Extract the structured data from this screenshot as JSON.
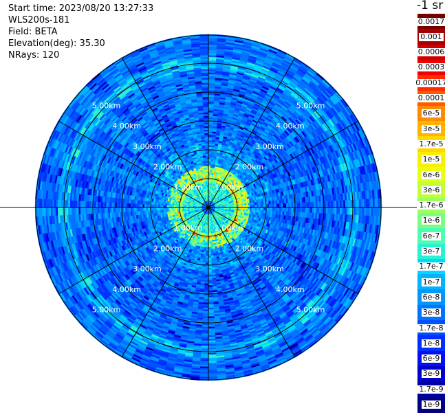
{
  "info": {
    "start_time": "Start time: 2023/08/20 13:27:33",
    "instrument": "WLS200s-181",
    "field": "Field: BETA",
    "elevation": "Elevation(deg): 35.30",
    "nrays": "NRays: 120"
  },
  "colorbar": {
    "unit": "-1 sr",
    "entries": [
      {
        "label": "0.0017",
        "color": "#7a0000"
      },
      {
        "label": "0.001",
        "color": "#a80000"
      },
      {
        "label": "0.0006",
        "color": "#cc0000"
      },
      {
        "label": "0.0003",
        "color": "#f00000"
      },
      {
        "label": "0.00017",
        "color": "#ff2a00"
      },
      {
        "label": "0.0001",
        "color": "#ff5a00"
      },
      {
        "label": "6e-5",
        "color": "#ff8c00"
      },
      {
        "label": "3e-5",
        "color": "#ffb400"
      },
      {
        "label": "1.7e-5",
        "color": "#ffd700"
      },
      {
        "label": "1e-5",
        "color": "#f8f000"
      },
      {
        "label": "6e-6",
        "color": "#e6ff12"
      },
      {
        "label": "3e-6",
        "color": "#c2ff36"
      },
      {
        "label": "1.7e-6",
        "color": "#9cff5c"
      },
      {
        "label": "1e-6",
        "color": "#78ff80"
      },
      {
        "label": "6e-7",
        "color": "#4cffac"
      },
      {
        "label": "3e-7",
        "color": "#2af0d4"
      },
      {
        "label": "1.7e-7",
        "color": "#00d8ff"
      },
      {
        "label": "1e-7",
        "color": "#00b4ff"
      },
      {
        "label": "6e-8",
        "color": "#0096ff"
      },
      {
        "label": "3e-8",
        "color": "#0074ff"
      },
      {
        "label": "1.7e-8",
        "color": "#0050ff"
      },
      {
        "label": "1e-8",
        "color": "#0030ff"
      },
      {
        "label": "6e-9",
        "color": "#0010f0"
      },
      {
        "label": "3e-9",
        "color": "#0000cc"
      },
      {
        "label": "1.7e-9",
        "color": "#0000a0"
      },
      {
        "label": "1e-9",
        "color": "#000080"
      }
    ]
  },
  "chart_data": {
    "type": "heatmap",
    "projection": "polar (PPI scan)",
    "field": "BETA",
    "elevation_deg": 35.3,
    "n_rays": 120,
    "range_ring_labels": [
      "1.00km",
      "2.00km",
      "3.00km",
      "4.00km",
      "5.00km"
    ],
    "range_rings_km": [
      1,
      2,
      3,
      4,
      5
    ],
    "max_range_km": 6.0,
    "spoke_interval_deg": 30,
    "colorscale": "log, 1e-9 to 0.0017 sr^-1",
    "features": [
      {
        "description_range_km": [
          0.9,
          1.05
        ],
        "typical_value": 1.7e-06
      },
      {
        "description_range_km": [
          1.05,
          1.35
        ],
        "typical_value": 3e-07
      },
      {
        "description_range_km": [
          1.35,
          2.2
        ],
        "typical_value": 6e-08
      },
      {
        "description_range_km": [
          2.2,
          6.0
        ],
        "typical_value": 3e-08
      },
      {
        "description_range_km": [
          4.8,
          5.2
        ],
        "typical_value": 1e-07
      }
    ]
  }
}
